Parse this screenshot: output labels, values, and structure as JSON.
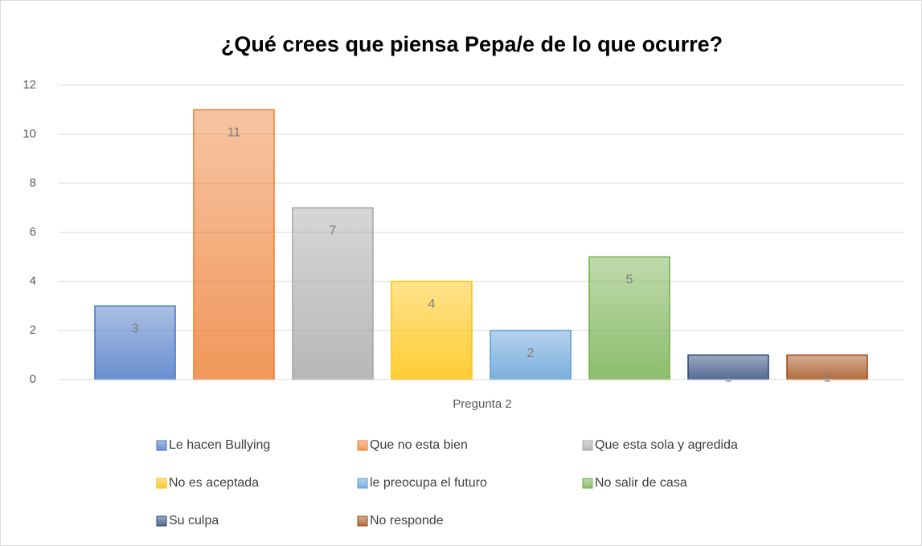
{
  "chart_data": {
    "type": "bar",
    "title": "¿Qué crees que piensa Pepa/e de lo que ocurre?",
    "x_label": "Pregunta 2",
    "categories": [
      "Pregunta 2"
    ],
    "series": [
      {
        "name": "Le hacen Bullying",
        "color": "#4472c4",
        "values": [
          3
        ]
      },
      {
        "name": "Que no esta bien",
        "color": "#ed7d31",
        "values": [
          11
        ]
      },
      {
        "name": "Que esta sola y agredida",
        "color": "#a5a5a5",
        "values": [
          7
        ]
      },
      {
        "name": "No es aceptada",
        "color": "#ffc000",
        "values": [
          4
        ]
      },
      {
        "name": "le preocupa el futuro",
        "color": "#5b9bd5",
        "values": [
          2
        ]
      },
      {
        "name": "No salir de casa",
        "color": "#70ad47",
        "values": [
          5
        ]
      },
      {
        "name": "Su culpa",
        "color": "#264478",
        "values": [
          1
        ]
      },
      {
        "name": "No responde",
        "color": "#9e480e",
        "values": [
          1
        ]
      }
    ],
    "ylim": [
      0,
      12
    ],
    "yticks": [
      0,
      2,
      4,
      6,
      8,
      10,
      12
    ],
    "grid": true,
    "legend": "bottom"
  }
}
